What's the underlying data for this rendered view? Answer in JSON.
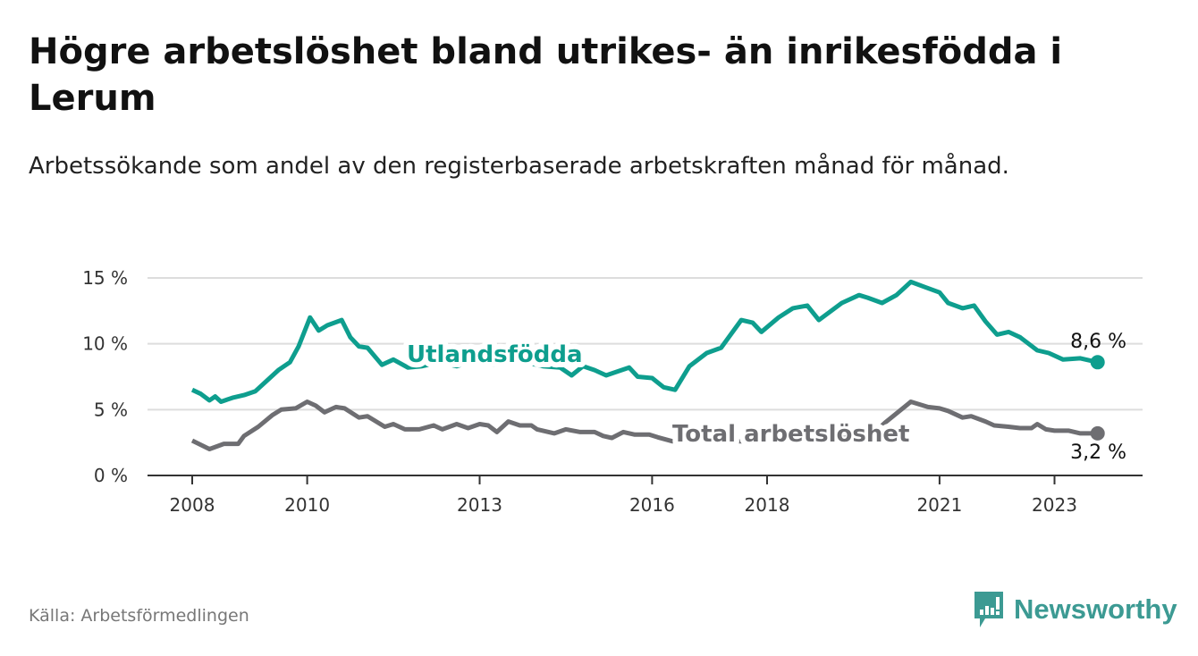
{
  "title": "Högre arbetslöshet bland utrikes- än inrikesfödda i Lerum",
  "subtitle": "Arbetssökande som andel av den registerbaserade arbetskraften månad för månad.",
  "source": "Källa: Arbetsförmedlingen",
  "logo": "Newsworthy",
  "colors": {
    "utlandsfodda": "#0e9e8e",
    "total": "#6e6e72",
    "grid": "#dddddd",
    "axis": "#333333"
  },
  "chart_data": {
    "type": "line",
    "title": "Högre arbetslöshet bland utrikes- än inrikesfödda i Lerum",
    "xlabel": "",
    "ylabel": "",
    "xlim": [
      2007.3,
      2024.6
    ],
    "ylim": [
      0,
      15
    ],
    "x_ticks": [
      2008,
      2010,
      2013,
      2016,
      2018,
      2021,
      2023
    ],
    "x_tick_labels": [
      "2008",
      "2010",
      "2013",
      "2016",
      "2018",
      "2021",
      "2023"
    ],
    "y_ticks": [
      0,
      5,
      10,
      15
    ],
    "y_tick_labels": [
      "0 %",
      "5 %",
      "10 %",
      "15 %"
    ],
    "grid": true,
    "series": [
      {
        "name": "Utlandsfödda",
        "end_label": "8,6 %",
        "x": [
          2008.0,
          2008.15,
          2008.3,
          2008.4,
          2008.5,
          2008.7,
          2008.9,
          2009.1,
          2009.3,
          2009.5,
          2009.7,
          2009.85,
          2010.05,
          2010.2,
          2010.35,
          2010.6,
          2010.75,
          2010.9,
          2011.05,
          2011.3,
          2011.5,
          2011.75,
          2012.0,
          2012.3,
          2012.6,
          2012.9,
          2013.2,
          2013.5,
          2013.8,
          2014.1,
          2014.4,
          2014.6,
          2014.8,
          2015.0,
          2015.2,
          2015.4,
          2015.6,
          2015.75,
          2016.0,
          2016.2,
          2016.4,
          2016.65,
          2016.95,
          2017.2,
          2017.55,
          2017.75,
          2017.9,
          2018.2,
          2018.45,
          2018.7,
          2018.9,
          2019.3,
          2019.6,
          2019.75,
          2020.0,
          2020.25,
          2020.5,
          2020.75,
          2021.0,
          2021.15,
          2021.4,
          2021.6,
          2021.8,
          2022.0,
          2022.2,
          2022.4,
          2022.7,
          2022.9,
          2023.15,
          2023.45,
          2023.75
        ],
        "values": [
          6.5,
          6.2,
          5.7,
          6.0,
          5.6,
          5.9,
          6.1,
          6.4,
          7.2,
          8.0,
          8.6,
          9.8,
          12.0,
          11.0,
          11.4,
          11.8,
          10.5,
          9.8,
          9.7,
          8.4,
          8.8,
          8.2,
          8.3,
          8.6,
          8.3,
          8.7,
          8.4,
          8.5,
          8.6,
          8.3,
          8.2,
          7.6,
          8.3,
          8.0,
          7.6,
          7.9,
          8.2,
          7.5,
          7.4,
          6.7,
          6.5,
          8.3,
          9.3,
          9.7,
          11.8,
          11.6,
          10.9,
          12.0,
          12.7,
          12.9,
          11.8,
          13.1,
          13.7,
          13.5,
          13.1,
          13.7,
          14.7,
          14.3,
          13.9,
          13.1,
          12.7,
          12.9,
          11.7,
          10.7,
          10.9,
          10.5,
          9.5,
          9.3,
          8.8,
          8.9,
          8.6
        ]
      },
      {
        "name": "Total arbetslöshet",
        "end_label": "3,2 %",
        "x": [
          2008.0,
          2008.3,
          2008.55,
          2008.8,
          2008.9,
          2009.15,
          2009.4,
          2009.55,
          2009.8,
          2010.0,
          2010.15,
          2010.3,
          2010.5,
          2010.65,
          2010.9,
          2011.05,
          2011.35,
          2011.5,
          2011.7,
          2011.95,
          2012.2,
          2012.35,
          2012.6,
          2012.8,
          2013.0,
          2013.15,
          2013.3,
          2013.5,
          2013.7,
          2013.9,
          2014.0,
          2014.3,
          2014.5,
          2014.75,
          2015.0,
          2015.15,
          2015.3,
          2015.5,
          2015.7,
          2015.95,
          2016.1,
          2016.35,
          2016.6,
          2017.0,
          2017.5,
          2018.0,
          2018.5,
          2019.0,
          2019.5,
          2019.85,
          2020.05,
          2020.5,
          2020.8,
          2021.0,
          2021.15,
          2021.4,
          2021.55,
          2021.8,
          2021.95,
          2022.2,
          2022.4,
          2022.6,
          2022.7,
          2022.85,
          2023.0,
          2023.25,
          2023.45,
          2023.75
        ],
        "values": [
          2.65,
          2.0,
          2.4,
          2.4,
          3.0,
          3.7,
          4.6,
          5.0,
          5.1,
          5.6,
          5.3,
          4.8,
          5.2,
          5.1,
          4.4,
          4.5,
          3.7,
          3.9,
          3.5,
          3.5,
          3.8,
          3.5,
          3.9,
          3.6,
          3.9,
          3.8,
          3.3,
          4.1,
          3.8,
          3.8,
          3.5,
          3.2,
          3.5,
          3.3,
          3.3,
          3.0,
          2.85,
          3.3,
          3.1,
          3.1,
          2.9,
          2.6,
          2.7,
          2.7,
          2.6,
          2.6,
          2.6,
          2.7,
          2.9,
          3.2,
          4.0,
          5.6,
          5.2,
          5.1,
          4.9,
          4.4,
          4.5,
          4.1,
          3.8,
          3.7,
          3.6,
          3.6,
          3.9,
          3.5,
          3.4,
          3.4,
          3.2,
          3.2
        ]
      }
    ]
  }
}
